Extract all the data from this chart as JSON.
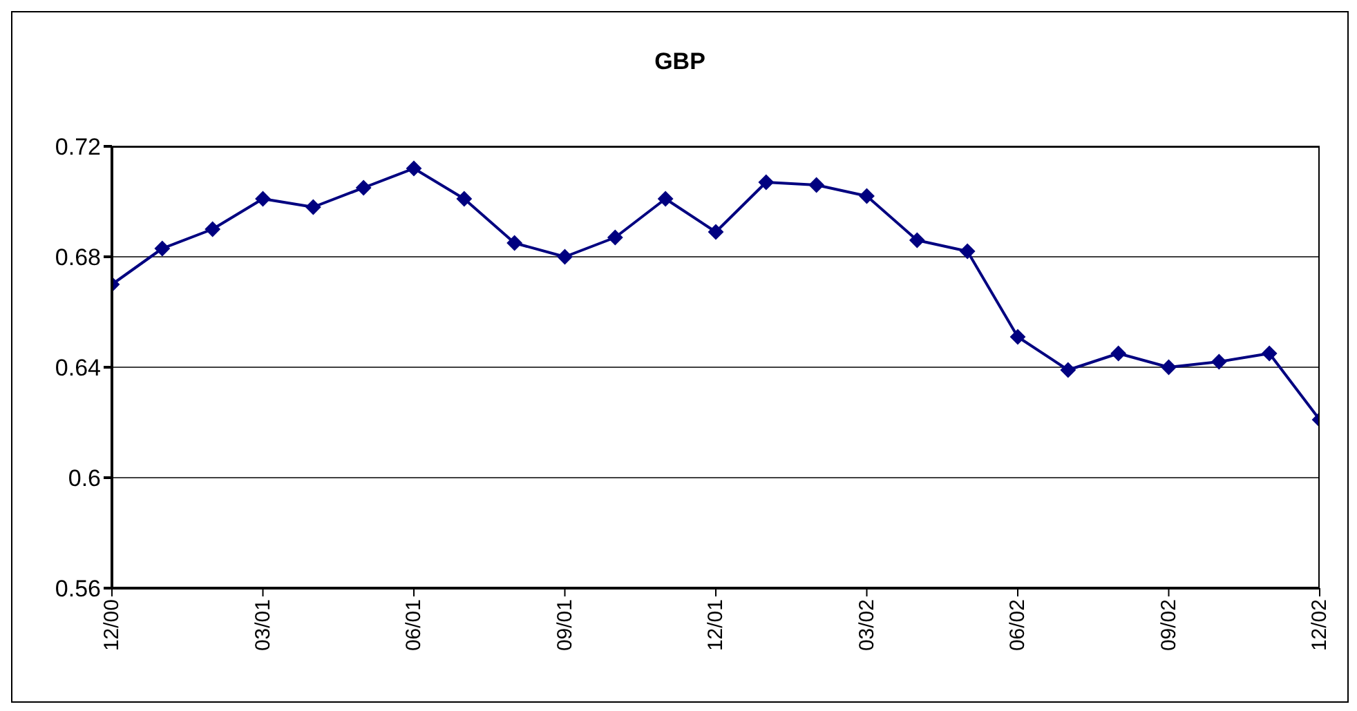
{
  "chart_data": {
    "type": "line",
    "title": "GBP",
    "categories": [
      "12/00",
      null,
      null,
      "03/01",
      null,
      null,
      "06/01",
      null,
      null,
      "09/01",
      null,
      null,
      "12/01",
      null,
      null,
      "03/02",
      null,
      null,
      "06/02",
      null,
      null,
      "09/02",
      null,
      null,
      "12/02"
    ],
    "series": [
      {
        "color": "#000080",
        "values": [
          0.67,
          0.683,
          0.69,
          0.701,
          0.698,
          0.705,
          0.712,
          0.701,
          0.685,
          0.68,
          0.687,
          0.701,
          0.689,
          0.707,
          0.706,
          0.702,
          0.686,
          0.682,
          0.651,
          0.639,
          0.645,
          0.64,
          0.642,
          0.645,
          0.621
        ]
      }
    ],
    "ylim": [
      0.56,
      0.72
    ],
    "yticks": [
      0.56,
      0.6,
      0.64,
      0.68,
      0.72
    ],
    "grid": "y",
    "marker": "diamond",
    "line_style": "solid",
    "legend": false
  }
}
